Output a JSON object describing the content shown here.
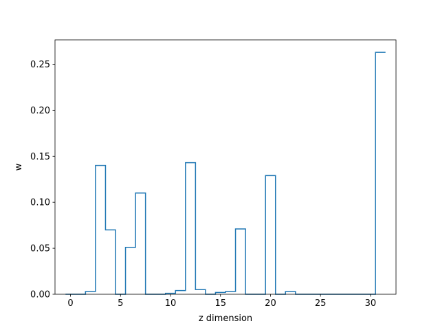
{
  "chart_data": {
    "type": "line",
    "style": "step",
    "xlabel": "z dimension",
    "ylabel": "w",
    "xlim": [
      -1.55,
      32.55
    ],
    "ylim": [
      0,
      0.2765
    ],
    "xticks": [
      0,
      5,
      10,
      15,
      20,
      25,
      30
    ],
    "xtick_labels": [
      "0",
      "5",
      "10",
      "15",
      "20",
      "25",
      "30"
    ],
    "yticks": [
      0,
      0.05,
      0.1,
      0.15,
      0.2,
      0.25
    ],
    "ytick_labels": [
      "0.00",
      "0.05",
      "0.10",
      "0.15",
      "0.20",
      "0.25"
    ],
    "grid": false,
    "line_color": "#1f77b4",
    "x": [
      0,
      1,
      2,
      3,
      4,
      5,
      6,
      7,
      8,
      9,
      10,
      11,
      12,
      13,
      14,
      15,
      16,
      17,
      18,
      19,
      20,
      21,
      22,
      23,
      24,
      25,
      26,
      27,
      28,
      29,
      30,
      31
    ],
    "values": [
      0.0,
      0.0,
      0.003,
      0.14,
      0.07,
      0.0,
      0.051,
      0.11,
      0.0,
      0.0,
      0.001,
      0.004,
      0.143,
      0.005,
      0.0,
      0.002,
      0.003,
      0.071,
      0.0,
      0.0,
      0.129,
      0.0,
      0.003,
      0.0,
      0.0,
      0.0,
      0.0,
      0.0,
      0.0,
      0.0,
      0.0,
      0.263
    ]
  }
}
